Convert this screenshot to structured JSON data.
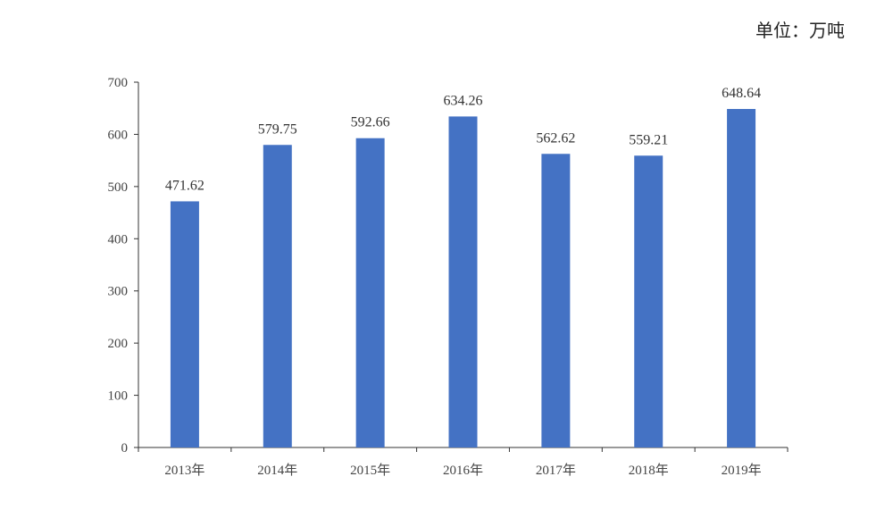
{
  "unit_label": "单位：万吨",
  "chart_data": {
    "type": "bar",
    "title": "",
    "unit": "单位：万吨",
    "categories": [
      "2013年",
      "2014年",
      "2015年",
      "2016年",
      "2017年",
      "2018年",
      "2019年"
    ],
    "values": [
      471.62,
      579.75,
      592.66,
      634.26,
      562.62,
      559.21,
      648.64
    ],
    "value_labels": [
      "471.62",
      "579.75",
      "592.66",
      "634.26",
      "562.62",
      "559.21",
      "648.64"
    ],
    "ylim": [
      0,
      700
    ],
    "yticks": [
      0,
      100,
      200,
      300,
      400,
      500,
      600,
      700
    ],
    "grid": false,
    "bar_color": "#4472C4"
  }
}
